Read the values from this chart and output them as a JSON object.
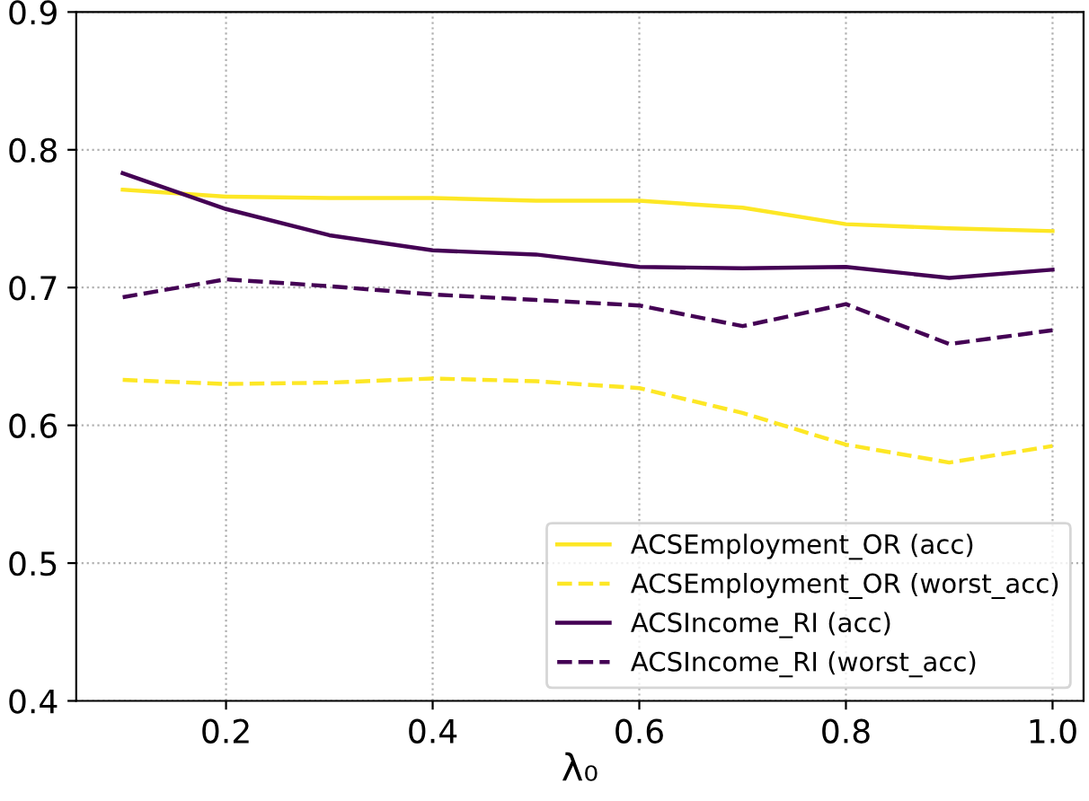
{
  "chart_data": {
    "type": "line",
    "xlabel": "λ₀",
    "x": [
      0.1,
      0.2,
      0.3,
      0.4,
      0.5,
      0.6,
      0.7,
      0.8,
      0.9,
      1.0
    ],
    "xlim": [
      0.055,
      1.03
    ],
    "xticks": [
      0.2,
      0.4,
      0.6,
      0.8,
      {
        "value": 1,
        "label": "1.0"
      }
    ],
    "ylim": [
      0.4,
      0.9
    ],
    "yticks": [
      0.4,
      0.5,
      0.6,
      0.7,
      0.8,
      0.9
    ],
    "grid": true,
    "legend": "bottom right",
    "marker": "none",
    "series": [
      {
        "name": "ACSEmployment_OR (acc)",
        "color": "#fde725",
        "line_style": "solid",
        "values": [
          0.771,
          0.766,
          0.765,
          0.765,
          0.763,
          0.763,
          0.758,
          0.746,
          0.743,
          0.741
        ]
      },
      {
        "name": "ACSEmployment_OR (worst_acc)",
        "color": "#fde725",
        "line_style": "dashed",
        "values": [
          0.633,
          0.63,
          0.631,
          0.634,
          0.632,
          0.627,
          0.609,
          0.586,
          0.573,
          0.585
        ]
      },
      {
        "name": "ACSIncome_RI (acc)",
        "color": "#440154",
        "line_style": "solid",
        "values": [
          0.783,
          0.757,
          0.738,
          0.727,
          0.724,
          0.715,
          0.714,
          0.715,
          0.707,
          0.713
        ]
      },
      {
        "name": "ACSIncome_RI (worst_acc)",
        "color": "#440154",
        "line_style": "dashed",
        "values": [
          0.693,
          0.706,
          0.701,
          0.695,
          0.691,
          0.687,
          0.672,
          0.688,
          0.659,
          0.669
        ]
      }
    ]
  }
}
